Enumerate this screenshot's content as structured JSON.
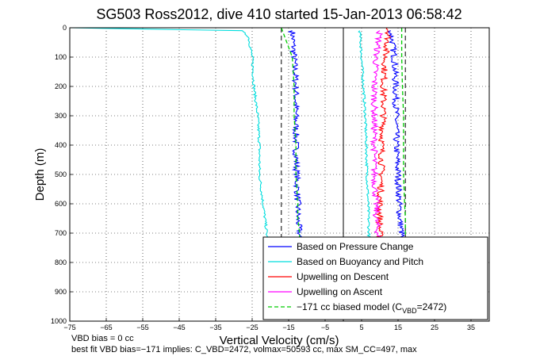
{
  "chart_data": {
    "type": "line",
    "title": "SG503 Ross2012, dive 410 started 15-Jan-2013 06:58:42",
    "xlabel": "Vertical Velocity (cm/s)",
    "ylabel": "Depth (m)",
    "xlim": [
      -75,
      40
    ],
    "ylim": [
      0,
      1000
    ],
    "y_reversed": true,
    "grid": true,
    "legend_position": "bottom-right",
    "xticks": [
      -75,
      -65,
      -55,
      -45,
      -35,
      -25,
      -15,
      -5,
      5,
      15,
      25,
      35
    ],
    "yticks": [
      0,
      100,
      200,
      300,
      400,
      500,
      600,
      700,
      800,
      900,
      1000
    ],
    "legend": [
      "Based on Pressure Change",
      "Based on Buoyancy and Pitch",
      "Upwelling on Descent",
      "Upwelling on Ascent"
    ],
    "legend_last": {
      "pre": "−171 cc biased model (C",
      "sub": "VBD",
      "post": "=2472)"
    },
    "series": [
      {
        "name": "Based on Pressure Change",
        "color": "#0000ff",
        "x": [
          -14,
          -13.5,
          -13,
          -13,
          -13,
          -12.8,
          -12.5,
          -12.5,
          -12,
          -12
        ],
        "y": [
          10,
          100,
          200,
          300,
          400,
          500,
          600,
          650,
          700,
          760
        ]
      },
      {
        "name": "Based on Pressure Change",
        "color": "#0000ff",
        "x": [
          13,
          14,
          14.3,
          14.5,
          14.5,
          15,
          15.3,
          15.5,
          16,
          16.5
        ],
        "y": [
          10,
          100,
          200,
          300,
          400,
          500,
          600,
          650,
          700,
          760
        ]
      },
      {
        "name": "Based on Buoyancy and Pitch",
        "color": "#00dddd",
        "x": [
          -75,
          -28,
          -26,
          -25,
          -24.5,
          -23.5,
          -23,
          -23,
          -22,
          -21,
          -21
        ],
        "y": [
          0,
          10,
          30,
          100,
          200,
          300,
          400,
          500,
          600,
          700,
          800
        ]
      },
      {
        "name": "Based on Buoyancy and Pitch",
        "color": "#00dddd",
        "x": [
          4.5,
          5,
          5.5,
          6,
          6.3,
          6.5,
          6.8,
          7,
          7
        ],
        "y": [
          10,
          100,
          200,
          300,
          400,
          500,
          600,
          700,
          760
        ]
      },
      {
        "name": "Upwelling on Descent",
        "color": "#ff0000",
        "x": [
          12,
          12.5,
          11.5,
          11,
          11,
          10.5,
          10.5,
          10,
          10,
          10.5
        ],
        "y": [
          0,
          10,
          100,
          200,
          300,
          400,
          500,
          600,
          700,
          760
        ]
      },
      {
        "name": "Upwelling on Ascent",
        "color": "#ff00ff",
        "x": [
          10,
          9,
          8.5,
          8.5,
          8.5,
          8.5,
          9,
          9,
          9.5,
          10
        ],
        "y": [
          10,
          100,
          200,
          300,
          400,
          500,
          600,
          650,
          700,
          760
        ]
      },
      {
        "name": "−171 cc biased model (C_VBD=2472)",
        "color": "#00cc00",
        "dashed": true,
        "x": [
          -17,
          -14,
          -13.5,
          -13.5,
          -13,
          -13,
          -12.5,
          -12.5,
          -12,
          -12
        ],
        "y": [
          0,
          100,
          200,
          300,
          400,
          500,
          600,
          650,
          700,
          760
        ]
      },
      {
        "name": "−171 cc biased model (C_VBD=2472)",
        "color": "#00cc00",
        "dashed": true,
        "x": [
          16,
          16,
          16.2,
          16.5,
          16.5,
          16.5,
          16.8,
          17,
          17,
          17
        ],
        "y": [
          0,
          100,
          200,
          300,
          400,
          500,
          600,
          650,
          700,
          760
        ]
      }
    ],
    "reference_lines": [
      {
        "x": -17,
        "style": "dashed",
        "color": "#000000"
      },
      {
        "x": 0,
        "style": "solid",
        "color": "#000000"
      },
      {
        "x": 17,
        "style": "dashed",
        "color": "#000000"
      }
    ]
  },
  "notes": {
    "line1": "VBD bias = 0 cc",
    "line2": "best fit VBD bias=−171 implies: C_VBD=2472, volmax=50593 cc, max SM_CC=497, max"
  }
}
